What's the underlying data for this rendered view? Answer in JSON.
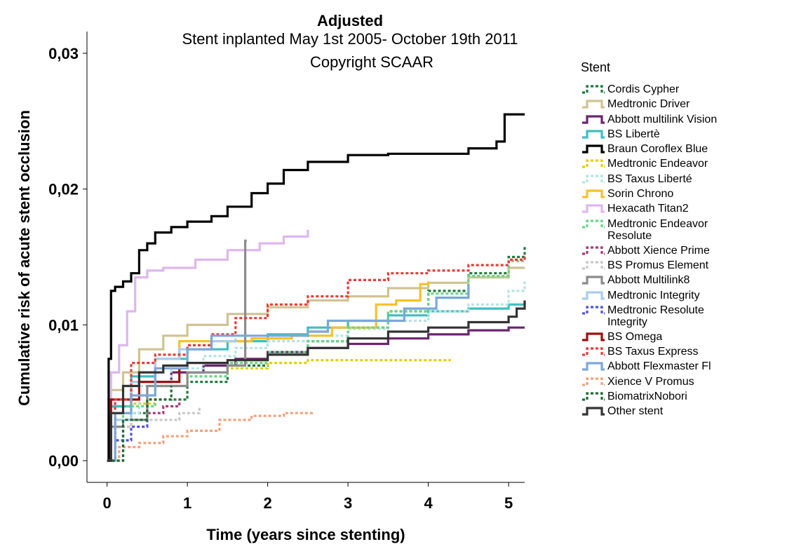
{
  "chart_data": {
    "type": "line",
    "title": "Adjusted",
    "subtitle": "Stent inplanted May 1st 2005- October 19th 2011",
    "annotation": "Copyright SCAAR",
    "xlabel": "Time (years since stenting)",
    "ylabel": "Cumulative risk of acute stent occlusion",
    "xlim": [
      -0.25,
      5.2
    ],
    "ylim": [
      -0.0016,
      0.0316
    ],
    "x_ticks": [
      "0",
      "1",
      "2",
      "3",
      "4",
      "5"
    ],
    "y_ticks": [
      "0,00",
      "0,01",
      "0,02",
      "0,03"
    ],
    "grid": false,
    "legend": {
      "title": "Stent",
      "position": "right"
    },
    "series": [
      {
        "name": "Cordis Cypher",
        "color": "#1a7a3a",
        "dash": "dot",
        "x": [
          0,
          0.1,
          0.5,
          1.0,
          1.5,
          2.0,
          2.5,
          3.0,
          3.5,
          4.0,
          4.5,
          5.0,
          5.2
        ],
        "y": [
          0,
          0.0035,
          0.0045,
          0.0058,
          0.007,
          0.008,
          0.0088,
          0.0098,
          0.011,
          0.0125,
          0.0138,
          0.015,
          0.0158
        ]
      },
      {
        "name": "Medtronic Driver",
        "color": "#cfc393",
        "dash": "solid",
        "x": [
          0,
          0.05,
          0.2,
          0.4,
          0.7,
          1.0,
          1.5,
          2.0,
          2.5,
          3.0,
          3.5,
          4.0,
          4.5,
          5.0,
          5.2
        ],
        "y": [
          0,
          0.0052,
          0.0065,
          0.0082,
          0.0092,
          0.01,
          0.0108,
          0.0113,
          0.0118,
          0.0121,
          0.0127,
          0.0131,
          0.0135,
          0.0142,
          0.0142
        ]
      },
      {
        "name": "Abbott multilink Vision",
        "color": "#6b2470",
        "dash": "solid",
        "x": [
          0,
          0.05,
          0.3,
          0.8,
          1.2,
          1.6,
          2.0,
          2.5,
          3.0,
          3.5,
          4.0,
          4.5,
          5.0,
          5.2
        ],
        "y": [
          0,
          0.004,
          0.0058,
          0.0065,
          0.007,
          0.0075,
          0.008,
          0.0083,
          0.0086,
          0.009,
          0.0093,
          0.0096,
          0.0098,
          0.0098
        ]
      },
      {
        "name": "BS Libertè",
        "color": "#3fbfbf",
        "dash": "solid",
        "x": [
          0,
          0.05,
          0.3,
          0.6,
          1.0,
          1.5,
          2.0,
          2.5,
          3.0,
          3.5,
          4.0,
          4.5,
          5.0,
          5.2
        ],
        "y": [
          0,
          0.004,
          0.0062,
          0.0075,
          0.0082,
          0.0088,
          0.0093,
          0.0098,
          0.0103,
          0.0107,
          0.011,
          0.0112,
          0.0115,
          0.0118
        ]
      },
      {
        "name": "Braun Coroflex Blue",
        "color": "#000000",
        "dash": "solid",
        "x": [
          0,
          0.02,
          0.05,
          0.1,
          0.2,
          0.3,
          0.4,
          0.5,
          0.6,
          0.8,
          1.0,
          1.3,
          1.5,
          1.8,
          2.0,
          2.2,
          2.5,
          3.0,
          3.5,
          4.0,
          4.5,
          4.85,
          4.95,
          5.2
        ],
        "y": [
          0,
          0.0075,
          0.0125,
          0.0128,
          0.0132,
          0.0138,
          0.0155,
          0.016,
          0.0168,
          0.0172,
          0.0176,
          0.018,
          0.0187,
          0.0197,
          0.0204,
          0.0214,
          0.022,
          0.0225,
          0.0226,
          0.0226,
          0.023,
          0.0235,
          0.0255,
          0.0255
        ]
      },
      {
        "name": "Medtronic Endeavor",
        "color": "#e0d000",
        "dash": "dot",
        "x": [
          0,
          0.1,
          0.3,
          0.6,
          1.0,
          1.5,
          2.0,
          2.5,
          3.0,
          3.5,
          4.0,
          4.28
        ],
        "y": [
          0,
          0.003,
          0.0042,
          0.0055,
          0.0062,
          0.0068,
          0.0072,
          0.0074,
          0.0074,
          0.0074,
          0.0074,
          0.0074
        ]
      },
      {
        "name": "BS Taxus Liberté",
        "color": "#b6e2e2",
        "dash": "dot",
        "x": [
          0,
          0.1,
          0.4,
          0.8,
          1.2,
          1.6,
          2.0,
          2.5,
          3.0,
          3.5,
          4.0,
          4.5,
          5.0,
          5.2
        ],
        "y": [
          0,
          0.0035,
          0.0055,
          0.0068,
          0.0077,
          0.0083,
          0.0088,
          0.0092,
          0.0097,
          0.0103,
          0.011,
          0.0115,
          0.0125,
          0.0133
        ]
      },
      {
        "name": "Sorin Chrono",
        "color": "#f7c12a",
        "dash": "solid",
        "x": [
          0,
          0.05,
          0.3,
          0.6,
          0.9,
          1.3,
          1.8,
          2.3,
          2.8,
          3.1,
          3.35,
          3.6,
          3.9,
          4.0
        ],
        "y": [
          0,
          0.0035,
          0.0058,
          0.0075,
          0.0088,
          0.0088,
          0.009,
          0.0092,
          0.0098,
          0.0098,
          0.0115,
          0.0118,
          0.013,
          0.0132
        ]
      },
      {
        "name": "Hexacath Titan2",
        "color": "#ddb7ee",
        "dash": "solid",
        "x": [
          0,
          0.05,
          0.15,
          0.25,
          0.35,
          0.5,
          0.7,
          1.1,
          1.5,
          1.9,
          2.2,
          2.5
        ],
        "y": [
          0,
          0.0065,
          0.0085,
          0.011,
          0.0135,
          0.014,
          0.0142,
          0.0148,
          0.0155,
          0.016,
          0.0165,
          0.017
        ]
      },
      {
        "name": "Medtronic Endeavor\nResolute",
        "color": "#6ad48a",
        "dash": "dot",
        "x": [
          0,
          0.2,
          0.6,
          1.0,
          1.5,
          2.0,
          2.5,
          3.0,
          3.5,
          4.0,
          4.5,
          5.0,
          5.2
        ],
        "y": [
          0,
          0.004,
          0.0055,
          0.0062,
          0.0072,
          0.008,
          0.0088,
          0.0098,
          0.011,
          0.0123,
          0.0136,
          0.0147,
          0.0152
        ]
      },
      {
        "name": "Abbott Xience Prime",
        "color": "#a53a78",
        "dash": "dot",
        "x": [
          0,
          0.1,
          0.3,
          0.5,
          0.7,
          0.9
        ],
        "y": [
          0,
          0.0025,
          0.003,
          0.0035,
          0.004,
          0.0045
        ]
      },
      {
        "name": "BS Promus Element",
        "color": "#c8c8c8",
        "dash": "dot",
        "x": [
          0,
          0.1,
          0.3,
          0.6,
          0.9,
          1.15
        ],
        "y": [
          0,
          0.0025,
          0.003,
          0.003,
          0.0035,
          0.004
        ]
      },
      {
        "name": "Abbott Multilink8",
        "color": "#8c8c8c",
        "dash": "solid",
        "x": [
          0,
          0.05,
          0.2,
          0.5,
          1.0,
          1.5,
          1.72,
          1.72,
          1.74
        ],
        "y": [
          0,
          0.0025,
          0.003,
          0.0055,
          0.0065,
          0.007,
          0.0072,
          0.0162,
          0.0162
        ]
      },
      {
        "name": "Medtronic Integrity",
        "color": "#a9cdef",
        "dash": "solid",
        "x": [
          0,
          0.1,
          0.3,
          0.6,
          0.9,
          1.3,
          1.6
        ],
        "y": [
          0,
          0.003,
          0.0058,
          0.0075,
          0.0082,
          0.0088,
          0.009
        ]
      },
      {
        "name": "Medtronic Resolute\nIntegrity",
        "color": "#5050e0",
        "dash": "dot",
        "x": [
          0,
          0.1,
          0.3,
          0.5
        ],
        "y": [
          0,
          0.0015,
          0.0025,
          0.003
        ]
      },
      {
        "name": "BS Omega",
        "color": "#9a1010",
        "dash": "solid",
        "x": [
          0,
          0.05,
          0.4,
          0.9
        ],
        "y": [
          0,
          0.0045,
          0.0058,
          0.0068
        ]
      },
      {
        "name": "BS Taxus Express",
        "color": "#e83a3a",
        "dash": "dot",
        "x": [
          0,
          0.1,
          0.3,
          0.6,
          1.0,
          1.3,
          1.6,
          2.0,
          2.5,
          3.0,
          3.5,
          4.0,
          4.5,
          5.0,
          5.2
        ],
        "y": [
          0,
          0.0045,
          0.0072,
          0.0078,
          0.0085,
          0.0093,
          0.0105,
          0.0115,
          0.0121,
          0.0133,
          0.0138,
          0.014,
          0.0144,
          0.0148,
          0.0152
        ]
      },
      {
        "name": "Abbott Flexmaster Fl",
        "color": "#7ba7d7",
        "dash": "solid",
        "x": [
          0,
          0.1,
          0.3,
          0.6,
          1.0,
          1.3,
          2.0,
          2.5,
          2.75,
          3.2,
          3.7,
          4.1,
          4.5
        ],
        "y": [
          0,
          0.0035,
          0.0048,
          0.0068,
          0.0082,
          0.0092,
          0.0092,
          0.0095,
          0.0103,
          0.0103,
          0.0112,
          0.012,
          0.013
        ]
      },
      {
        "name": "Xience V Promus",
        "color": "#f5a07a",
        "dash": "dot",
        "x": [
          0,
          0.15,
          0.4,
          0.7,
          1.0,
          1.4,
          1.8,
          2.2,
          2.55
        ],
        "y": [
          0,
          0.001,
          0.0013,
          0.0018,
          0.0022,
          0.003,
          0.0033,
          0.0035,
          0.0036
        ]
      },
      {
        "name": "BiomatrixNobori",
        "color": "#1e6a35",
        "dash": "dot",
        "x": [
          0,
          0.2,
          0.5,
          0.8
        ],
        "y": [
          0,
          0.003,
          0.0045,
          0.0055
        ]
      },
      {
        "name": "Other stent",
        "color": "#333333",
        "dash": "solid",
        "x": [
          0,
          0.05,
          0.2,
          0.4,
          0.7,
          1.0,
          1.5,
          2.0,
          2.5,
          3.0,
          3.5,
          4.0,
          4.5,
          5.0,
          5.1,
          5.2
        ],
        "y": [
          0,
          0.0035,
          0.0055,
          0.0065,
          0.007,
          0.0072,
          0.0074,
          0.0078,
          0.0083,
          0.009,
          0.0095,
          0.0098,
          0.0102,
          0.0106,
          0.0112,
          0.0118
        ]
      }
    ]
  }
}
